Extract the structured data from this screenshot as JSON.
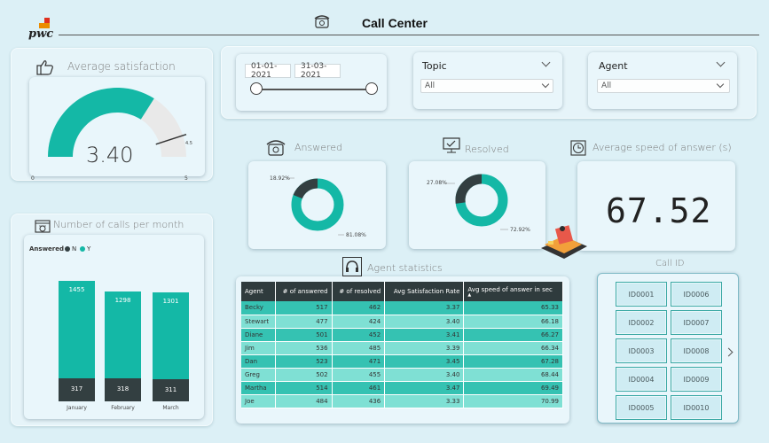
{
  "header": {
    "title": "Call Center",
    "logo_text": "pwc"
  },
  "colors": {
    "accent": "#14b8a6",
    "dark": "#333f41",
    "gauge_rest": "#e9e9e9"
  },
  "satisfaction": {
    "title": "Average satisfaction",
    "value": "3.40",
    "min": "0",
    "max": "5",
    "target": "4.5",
    "fraction": 0.68
  },
  "calls_month": {
    "title": "Number of calls per month",
    "legend_title": "Answered",
    "legend": [
      "N",
      "Y"
    ]
  },
  "date_slicer": {
    "start": "01-01-2021",
    "end": "31-03-2021"
  },
  "topic": {
    "label": "Topic",
    "value": "All"
  },
  "agent": {
    "label": "Agent",
    "value": "All"
  },
  "answered": {
    "title": "Answered",
    "label_small": "18.92%",
    "label_big": "81.08%",
    "fraction_big": 0.8108
  },
  "resolved": {
    "title": "Resolved",
    "label_small": "27.08%",
    "label_big": "72.92%",
    "fraction_big": 0.7292
  },
  "speed": {
    "title": "Average speed of answer (s)",
    "value": "67.52"
  },
  "agent_stats": {
    "title": "Agent statistics",
    "columns": [
      "Agent",
      "# of answered",
      "# of resolved",
      "Avg Satisfaction Rate",
      "Avg speed of answer in sec"
    ],
    "rows": [
      [
        "Becky",
        "517",
        "462",
        "3.37",
        "65.33"
      ],
      [
        "Stewart",
        "477",
        "424",
        "3.40",
        "66.18"
      ],
      [
        "Diane",
        "501",
        "452",
        "3.41",
        "66.27"
      ],
      [
        "Jim",
        "536",
        "485",
        "3.39",
        "66.34"
      ],
      [
        "Dan",
        "523",
        "471",
        "3.45",
        "67.28"
      ],
      [
        "Greg",
        "502",
        "455",
        "3.40",
        "68.44"
      ],
      [
        "Martha",
        "514",
        "461",
        "3.47",
        "69.49"
      ],
      [
        "Joe",
        "484",
        "436",
        "3.33",
        "70.99"
      ]
    ]
  },
  "call_id": {
    "title": "Call ID",
    "ids": [
      "ID0001",
      "ID0006",
      "ID0002",
      "ID0007",
      "ID0003",
      "ID0008",
      "ID0004",
      "ID0009",
      "ID0005",
      "ID0010"
    ]
  },
  "chart_data": {
    "type": "bar",
    "title": "Number of calls per month",
    "categories": [
      "January",
      "February",
      "March"
    ],
    "series": [
      {
        "name": "N",
        "values": [
          317,
          318,
          311
        ]
      },
      {
        "name": "Y",
        "values": [
          1455,
          1298,
          1301
        ]
      }
    ],
    "legend_title": "Answered",
    "stacked": true
  }
}
